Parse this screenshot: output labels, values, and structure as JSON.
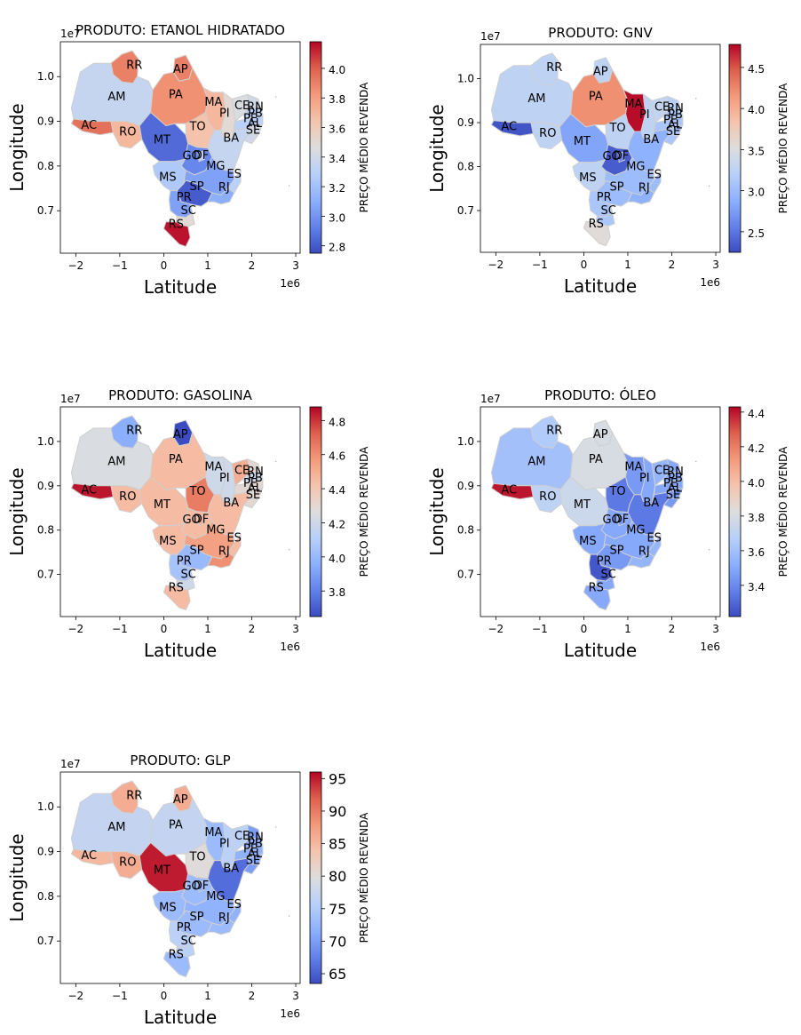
{
  "chart_data": [
    {
      "type": "choropleth",
      "title": "PRODUTO: ETANOL HIDRATADO",
      "xlabel": "Latitude",
      "ylabel": "Longitude",
      "x_offset_label": "1e6",
      "y_offset_label": "1e7",
      "x_ticks": [
        "−2",
        "−1",
        "0",
        "1",
        "2",
        "3"
      ],
      "y_ticks": [
        "0.7",
        "0.8",
        "0.9",
        "1.0"
      ],
      "colorbar_label": "PREÇO MÉDIO REVENDA",
      "colorbar_range": [
        2.75,
        4.18
      ],
      "colorbar_ticks": [
        "2.8",
        "3.0",
        "3.2",
        "3.4",
        "3.6",
        "3.8",
        "4.0"
      ],
      "colorbar_tick_values": [
        2.8,
        3.0,
        3.2,
        3.4,
        3.6,
        3.8,
        4.0
      ],
      "regions": {
        "RR": 3.9,
        "AP": 3.9,
        "AM": 3.35,
        "PA": 3.85,
        "MA": 3.7,
        "PI": 3.5,
        "CE": 3.45,
        "RN": 3.4,
        "PB": 3.3,
        "PE": 3.3,
        "AL": 3.4,
        "SE": 3.4,
        "BA": 3.35,
        "TO": 3.65,
        "AC": 3.95,
        "RO": 3.7,
        "MT": 2.85,
        "GO": 2.95,
        "DF": 3.3,
        "MG": 3.05,
        "ES": 3.3,
        "MS": 3.25,
        "SP": 2.8,
        "RJ": 3.1,
        "PR": 3.05,
        "SC": 3.5,
        "RS": 4.15
      }
    },
    {
      "type": "choropleth",
      "title": "PRODUTO: GNV",
      "xlabel": "Latitude",
      "ylabel": "Longitude",
      "x_offset_label": "1e6",
      "y_offset_label": "1e7",
      "x_ticks": [
        "−2",
        "−1",
        "0",
        "1",
        "2",
        "3"
      ],
      "y_ticks": [
        "0.7",
        "0.8",
        "0.9",
        "1.0"
      ],
      "colorbar_label": "PREÇO MÉDIO REVENDA",
      "colorbar_range": [
        2.25,
        4.78
      ],
      "colorbar_ticks": [
        "2.5",
        "3.0",
        "3.5",
        "4.0",
        "4.5"
      ],
      "colorbar_tick_values": [
        2.5,
        3.0,
        3.5,
        4.0,
        4.5
      ],
      "regions": {
        "RR": 3.25,
        "AP": 3.25,
        "AM": 3.25,
        "PA": 4.2,
        "MA": 4.75,
        "PI": 3.25,
        "CE": 3.3,
        "RN": 3.2,
        "PB": 3.1,
        "PE": 3.1,
        "AL": 3.1,
        "SE": 3.1,
        "BA": 2.9,
        "TO": 3.25,
        "AC": 2.3,
        "RO": 3.25,
        "MT": 2.8,
        "GO": 2.35,
        "DF": 2.6,
        "MG": 3.0,
        "ES": 3.0,
        "MS": 3.25,
        "SP": 3.0,
        "RJ": 2.9,
        "PR": 3.1,
        "SC": 3.1,
        "RS": 3.55
      }
    },
    {
      "type": "choropleth",
      "title": "PRODUTO: GASOLINA",
      "xlabel": "Latitude",
      "ylabel": "Longitude",
      "x_offset_label": "1e6",
      "y_offset_label": "1e7",
      "x_ticks": [
        "−2",
        "−1",
        "0",
        "1",
        "2",
        "3"
      ],
      "y_ticks": [
        "0.7",
        "0.8",
        "0.9",
        "1.0"
      ],
      "colorbar_label": "PREÇO MÉDIO REVENDA",
      "colorbar_range": [
        3.65,
        4.88
      ],
      "colorbar_ticks": [
        "3.8",
        "4.0",
        "4.2",
        "4.4",
        "4.6",
        "4.8"
      ],
      "colorbar_tick_values": [
        3.8,
        4.0,
        4.2,
        4.4,
        4.6,
        4.8
      ],
      "regions": {
        "RR": 3.95,
        "AP": 3.65,
        "AM": 4.25,
        "PA": 4.45,
        "MA": 4.2,
        "PI": 4.2,
        "CE": 4.5,
        "RN": 4.3,
        "PB": 4.2,
        "PE": 4.3,
        "AL": 4.3,
        "SE": 4.3,
        "BA": 4.45,
        "TO": 4.65,
        "AC": 4.85,
        "RO": 4.45,
        "MT": 4.45,
        "GO": 4.45,
        "DF": 4.5,
        "MG": 4.55,
        "ES": 4.45,
        "MS": 4.45,
        "SP": 4.0,
        "RJ": 4.6,
        "PR": 4.05,
        "SC": 4.2,
        "RS": 4.45
      }
    },
    {
      "type": "choropleth",
      "title": "PRODUTO: ÓLEO",
      "xlabel": "Latitude",
      "ylabel": "Longitude",
      "x_offset_label": "1e6",
      "y_offset_label": "1e7",
      "x_ticks": [
        "−2",
        "−1",
        "0",
        "1",
        "2",
        "3"
      ],
      "y_ticks": [
        "0.7",
        "0.8",
        "0.9",
        "1.0"
      ],
      "colorbar_label": "PREÇO MÉDIO REVENDA",
      "colorbar_range": [
        3.22,
        4.43
      ],
      "colorbar_ticks": [
        "3.4",
        "3.6",
        "3.8",
        "4.0",
        "4.2",
        "4.4"
      ],
      "colorbar_tick_values": [
        3.4,
        3.6,
        3.8,
        4.0,
        4.2,
        4.4
      ],
      "regions": {
        "RR": 3.65,
        "AP": 3.8,
        "AM": 3.6,
        "PA": 3.8,
        "MA": 3.45,
        "PI": 3.5,
        "CE": 3.55,
        "RN": 3.5,
        "PB": 3.5,
        "PE": 3.5,
        "AL": 3.45,
        "SE": 3.45,
        "BA": 3.35,
        "TO": 3.35,
        "AC": 4.4,
        "RO": 3.7,
        "MT": 3.75,
        "GO": 3.5,
        "DF": 3.45,
        "MG": 3.5,
        "ES": 3.55,
        "MS": 3.5,
        "SP": 3.45,
        "RJ": 3.55,
        "PR": 3.25,
        "SC": 3.5,
        "RS": 3.5
      }
    },
    {
      "type": "choropleth",
      "title": "PRODUTO: GLP",
      "xlabel": "Latitude",
      "ylabel": "Longitude",
      "x_offset_label": "1e6",
      "y_offset_label": "1e7",
      "x_ticks": [
        "−2",
        "−1",
        "0",
        "1",
        "2",
        "3"
      ],
      "y_ticks": [
        "0.7",
        "0.8",
        "0.9",
        "1.0"
      ],
      "colorbar_label": "PREÇO MÉDIO REVENDA",
      "colorbar_range": [
        63.5,
        96
      ],
      "colorbar_ticks": [
        "65",
        "70",
        "75",
        "80",
        "85",
        "90",
        "95"
      ],
      "colorbar_tick_values": [
        65,
        70,
        75,
        80,
        85,
        90,
        95
      ],
      "regions": {
        "RR": 86,
        "AP": 86,
        "AM": 77,
        "PA": 77,
        "MA": 73,
        "PI": 76,
        "CE": 76,
        "RN": 70,
        "PB": 72,
        "PE": 72,
        "AL": 71,
        "SE": 70,
        "BA": 66,
        "TO": 80,
        "AC": 85,
        "RO": 86,
        "MT": 95,
        "GO": 73,
        "DF": 72,
        "MG": 72,
        "ES": 72,
        "MS": 73,
        "SP": 73,
        "RJ": 73,
        "PR": 76,
        "SC": 76,
        "RS": 73
      }
    }
  ]
}
